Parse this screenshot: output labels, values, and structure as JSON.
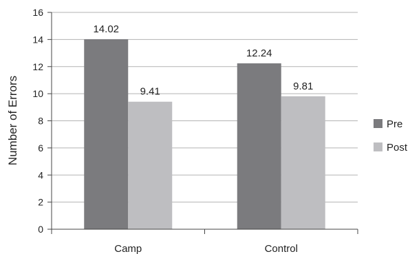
{
  "chart_data": {
    "type": "bar",
    "title": "",
    "xlabel": "",
    "ylabel": "Number of Errors",
    "categories": [
      "Camp",
      "Control"
    ],
    "series": [
      {
        "name": "Pre",
        "values": [
          14.02,
          12.24
        ],
        "color": "#7b7b7e"
      },
      {
        "name": "Post",
        "values": [
          9.41,
          9.81
        ],
        "color": "#bebec1"
      }
    ],
    "data_labels": [
      [
        "14.02",
        "12.24"
      ],
      [
        "9.41",
        "9.81"
      ]
    ],
    "ylim": [
      0,
      16
    ],
    "yticks": [
      0,
      2,
      4,
      6,
      8,
      10,
      12,
      14,
      16
    ],
    "ytick_labels": [
      "0",
      "2",
      "4",
      "6",
      "8",
      "10",
      "12",
      "14",
      "16"
    ],
    "grid": true,
    "gridline_color": "#b3b3b3",
    "axis_color": "#444444",
    "legend": {
      "position": "right"
    }
  }
}
